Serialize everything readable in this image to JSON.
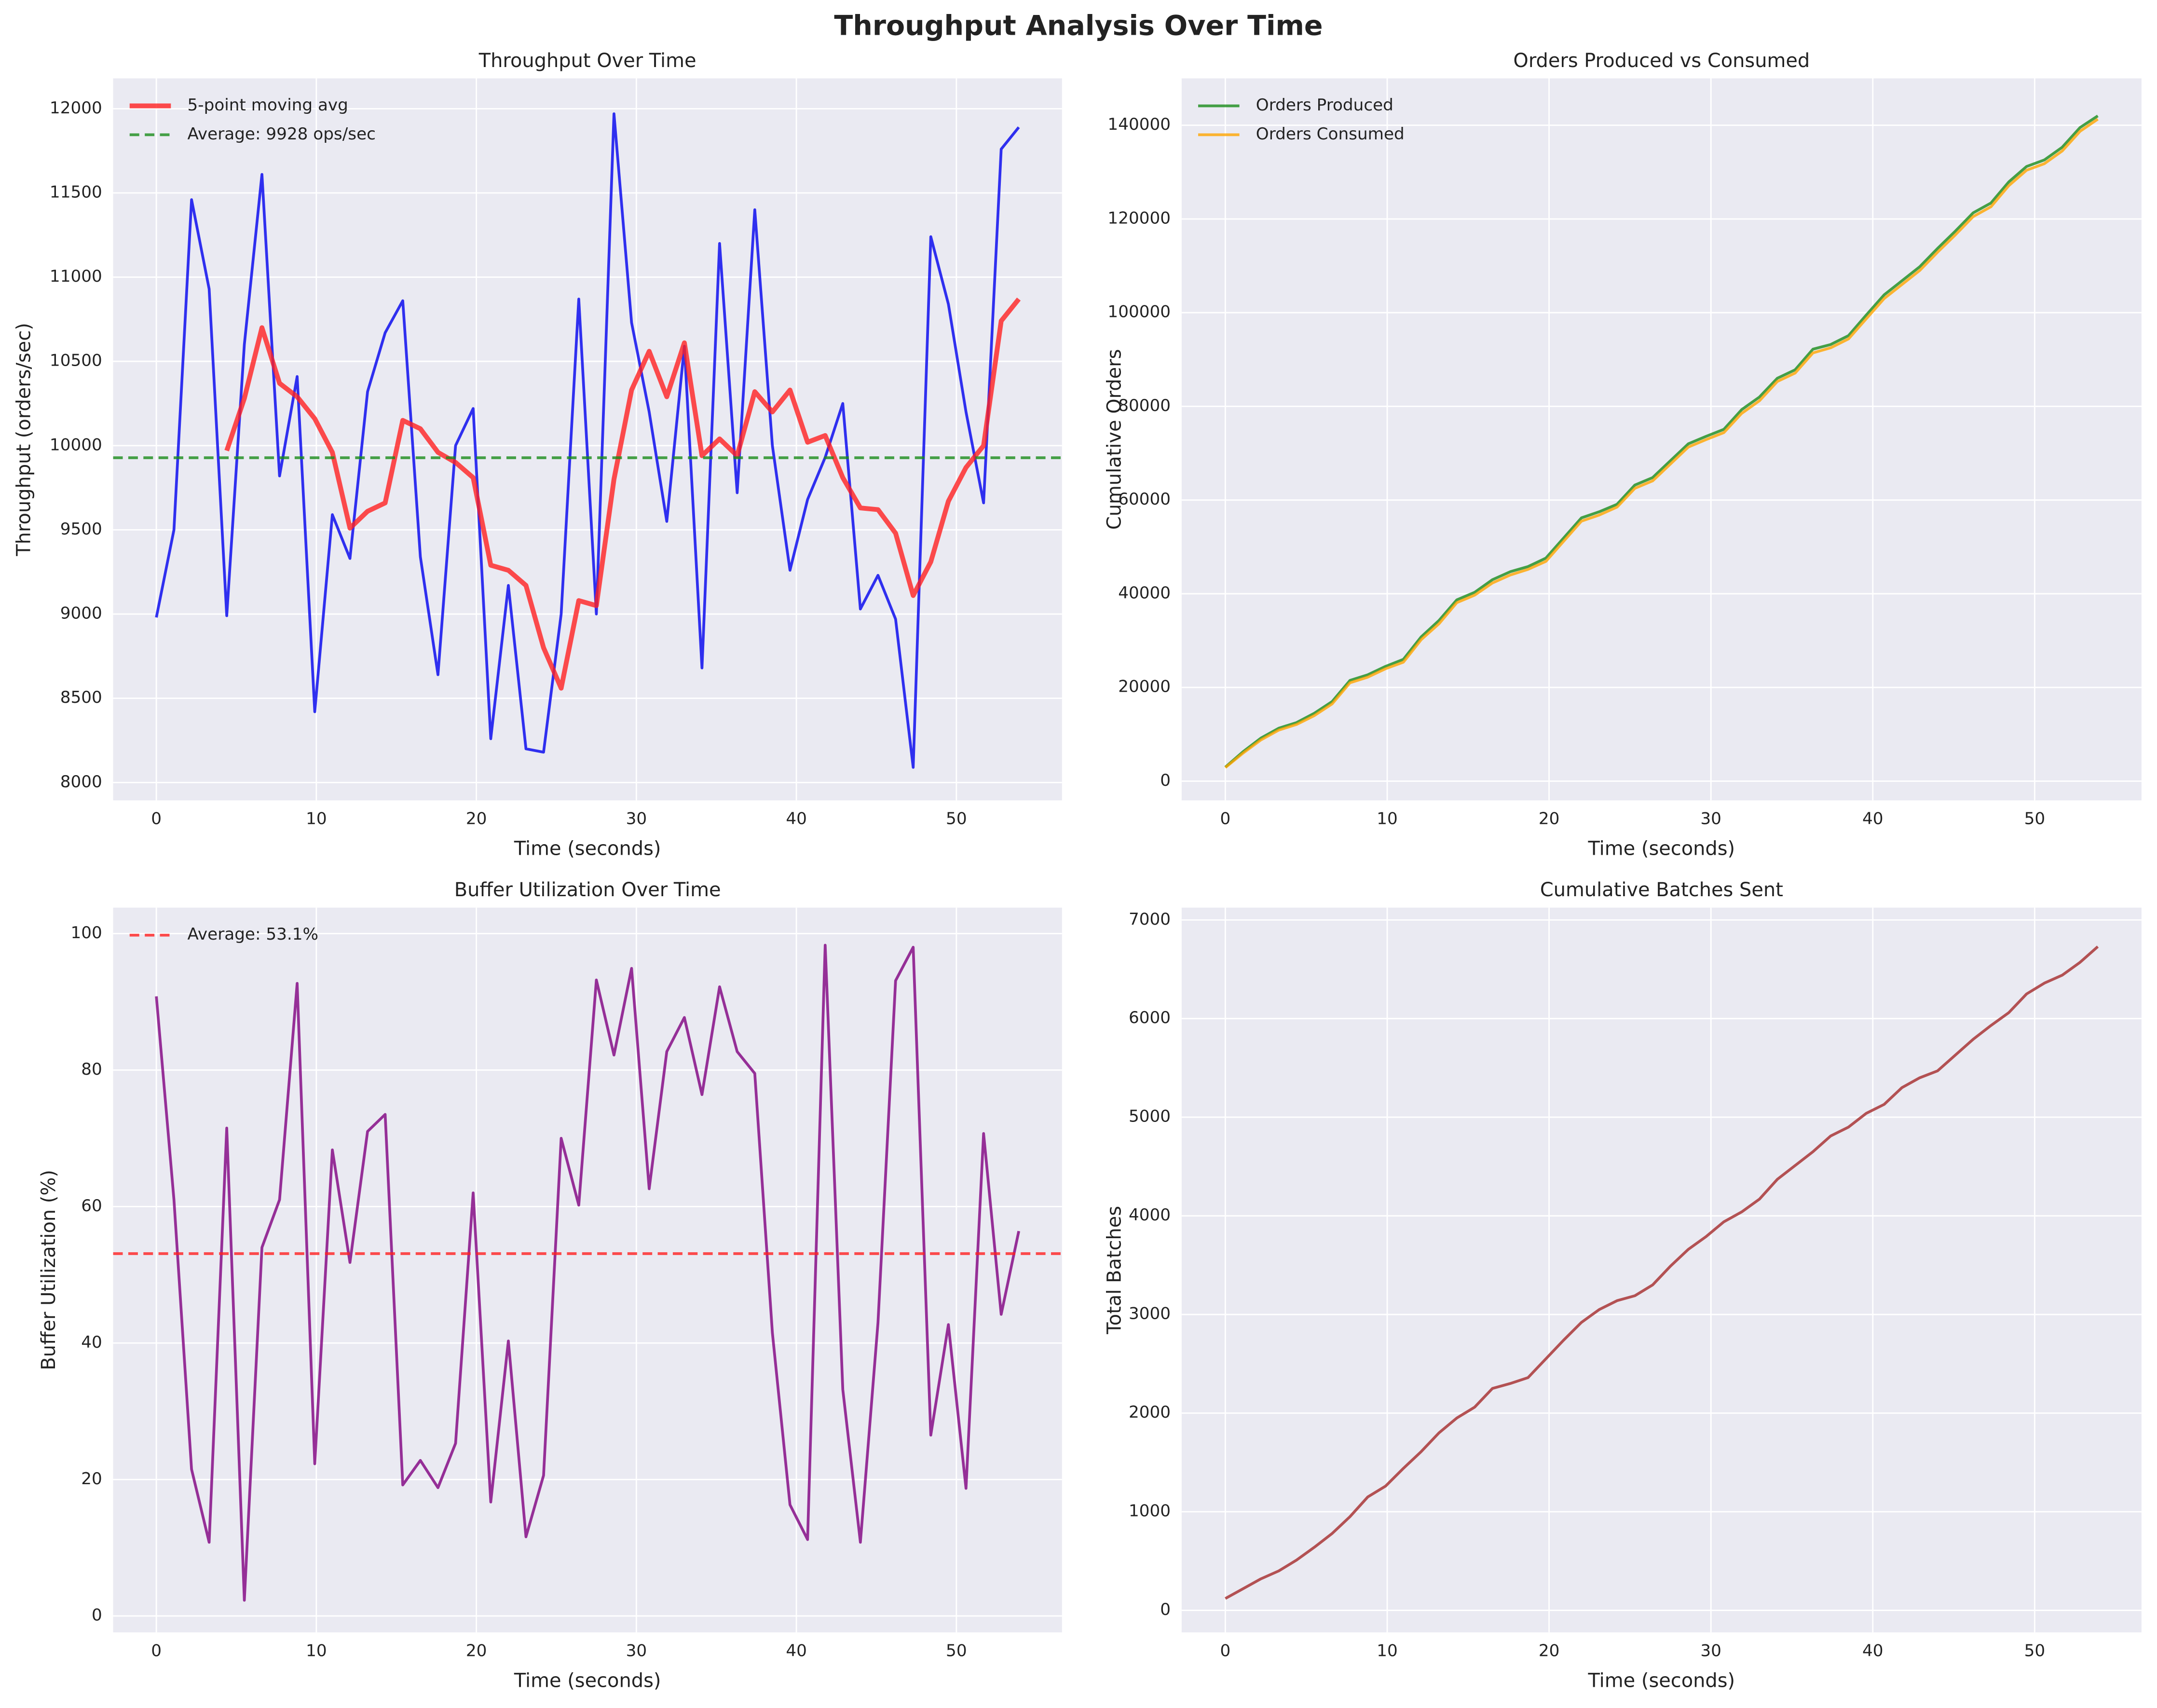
{
  "title": "Throughput Analysis Over Time",
  "chart_data": [
    {
      "type": "line",
      "title": "Throughput Over Time",
      "xlabel": "Time (seconds)",
      "ylabel": "Throughput (orders/sec)",
      "x": [
        0,
        1.1,
        2.2,
        3.3,
        4.4,
        5.5,
        6.6,
        7.7,
        8.8,
        9.9,
        11,
        12.1,
        13.2,
        14.3,
        15.4,
        16.5,
        17.6,
        18.7,
        19.8,
        20.9,
        22,
        23.1,
        24.2,
        25.3,
        26.4,
        27.5,
        28.6,
        29.7,
        30.8,
        31.9,
        33,
        34.1,
        35.2,
        36.3,
        37.4,
        38.5,
        39.6,
        40.7,
        41.8,
        42.9,
        44,
        45.1,
        46.2,
        47.3,
        48.4,
        49.5,
        50.6,
        51.7,
        52.8,
        53.9
      ],
      "series": [
        {
          "color": "#0000ee",
          "linewidth": 2,
          "values": [
            8980,
            9500,
            11460,
            10930,
            8990,
            10600,
            11610,
            9820,
            10410,
            8420,
            9590,
            9330,
            10320,
            10670,
            10860,
            9340,
            8640,
            10000,
            10220,
            8260,
            9170,
            8200,
            8180,
            9000,
            10870,
            9000,
            11970,
            10730,
            10200,
            9550,
            10590,
            8680,
            11200,
            9720,
            11400,
            10000,
            9260,
            9680,
            9930,
            10250,
            9030,
            9230,
            8970,
            8090,
            11240,
            10840,
            10200,
            9660,
            11760,
            11890
          ]
        },
        {
          "name": "5-point moving avg",
          "color": "#ff2020",
          "linewidth": 3.5,
          "values": [
            null,
            null,
            null,
            null,
            9970,
            10280,
            10700,
            10370,
            10290,
            10160,
            9960,
            9510,
            9610,
            9660,
            10150,
            10100,
            9960,
            9900,
            9810,
            9290,
            9260,
            9170,
            8800,
            8560,
            9080,
            9050,
            9800,
            10330,
            10560,
            10290,
            10610,
            9940,
            10040,
            9940,
            10320,
            10200,
            10330,
            10020,
            10060,
            9810,
            9630,
            9620,
            9480,
            9110,
            9310,
            9670,
            9870,
            10000,
            10740,
            10870
          ]
        }
      ],
      "hlines": [
        {
          "name": "Average: 9928 ops/sec",
          "value": 9928,
          "color": "#1a8c1a"
        }
      ],
      "xlim": [
        -2.7,
        56.6
      ],
      "xticks": [
        0,
        10,
        20,
        30,
        40,
        50
      ],
      "ylim": [
        7894,
        12180
      ],
      "yticks": [
        8000,
        8500,
        9000,
        9500,
        10000,
        10500,
        11000,
        11500,
        12000
      ],
      "grid": true,
      "legend": "upper left"
    },
    {
      "type": "line",
      "title": "Orders Produced vs Consumed",
      "xlabel": "Time (seconds)",
      "ylabel": "Cumulative Orders",
      "x": [
        0,
        1.1,
        2.2,
        3.3,
        4.4,
        5.5,
        6.6,
        7.7,
        8.8,
        9.9,
        11,
        12.1,
        13.2,
        14.3,
        15.4,
        16.5,
        17.6,
        18.7,
        19.8,
        20.9,
        22,
        23.1,
        24.2,
        25.3,
        26.4,
        27.5,
        28.6,
        29.7,
        30.8,
        31.9,
        33,
        34.1,
        35.2,
        36.3,
        37.4,
        38.5,
        39.6,
        40.7,
        41.8,
        42.9,
        44,
        45.1,
        46.2,
        47.3,
        48.4,
        49.5,
        50.6,
        51.7,
        52.8,
        53.9
      ],
      "series": [
        {
          "name": "Orders Produced",
          "color": "#1a8c1a",
          "linewidth": 2,
          "values": [
            3000,
            6300,
            9200,
            11300,
            12500,
            14500,
            17000,
            21500,
            22700,
            24500,
            26000,
            30800,
            34300,
            38700,
            40300,
            43000,
            44700,
            45800,
            47600,
            51900,
            56200,
            57500,
            59100,
            63200,
            64800,
            68400,
            72000,
            73600,
            75100,
            79300,
            82000,
            86000,
            87800,
            92200,
            93200,
            95100,
            99500,
            103800,
            106800,
            109800,
            113700,
            117400,
            121300,
            123400,
            127900,
            131200,
            132600,
            135300,
            139500,
            142000
          ]
        },
        {
          "name": "Orders Consumed",
          "color": "#ffa500",
          "linewidth": 2,
          "values": [
            2900,
            6000,
            8800,
            10900,
            12100,
            14000,
            16500,
            21000,
            22200,
            24000,
            25400,
            30200,
            33600,
            38100,
            39700,
            42300,
            44000,
            45200,
            46900,
            51200,
            55500,
            56800,
            58500,
            62500,
            64100,
            67700,
            71300,
            72900,
            74400,
            78500,
            81200,
            85300,
            87100,
            91400,
            92500,
            94400,
            98700,
            103000,
            106000,
            109000,
            112900,
            116600,
            120500,
            122600,
            127100,
            130400,
            131800,
            134500,
            138700,
            141300
          ]
        }
      ],
      "xlim": [
        -2.7,
        56.6
      ],
      "xticks": [
        0,
        10,
        20,
        30,
        40,
        50
      ],
      "ylim": [
        -4100,
        150000
      ],
      "yticks": [
        0,
        20000,
        40000,
        60000,
        80000,
        100000,
        120000,
        140000
      ],
      "grid": true,
      "legend": "upper left"
    },
    {
      "type": "line",
      "title": "Buffer Utilization Over Time",
      "xlabel": "Time (seconds)",
      "ylabel": "Buffer Utilization (%)",
      "x": [
        0,
        1.1,
        2.2,
        3.3,
        4.4,
        5.5,
        6.6,
        7.7,
        8.8,
        9.9,
        11,
        12.1,
        13.2,
        14.3,
        15.4,
        16.5,
        17.6,
        18.7,
        19.8,
        20.9,
        22,
        23.1,
        24.2,
        25.3,
        26.4,
        27.5,
        28.6,
        29.7,
        30.8,
        31.9,
        33,
        34.1,
        35.2,
        36.3,
        37.4,
        38.5,
        39.6,
        40.7,
        41.8,
        42.9,
        44,
        45.1,
        46.2,
        47.3,
        48.4,
        49.5,
        50.6,
        51.7,
        52.8,
        53.9
      ],
      "series": [
        {
          "color": "#800080",
          "linewidth": 2,
          "values": [
            90.8,
            61,
            21.5,
            10.8,
            71.5,
            2.3,
            54,
            61,
            92.7,
            22.3,
            68.3,
            51.8,
            71,
            73.5,
            19.2,
            22.8,
            18.8,
            25.3,
            62,
            16.7,
            40.3,
            11.6,
            20.6,
            70,
            60.2,
            93.2,
            82.2,
            94.9,
            62.6,
            82.7,
            87.7,
            76.4,
            92.2,
            82.7,
            79.5,
            41.5,
            16.3,
            11.2,
            98.3,
            33.2,
            10.8,
            43,
            93.1,
            98,
            26.5,
            42.7,
            18.7,
            70.7,
            44.2,
            56.4
          ]
        }
      ],
      "hlines": [
        {
          "name": "Average: 53.1%",
          "value": 53.1,
          "color": "#ff2020"
        }
      ],
      "xlim": [
        -2.7,
        56.6
      ],
      "xticks": [
        0,
        10,
        20,
        30,
        40,
        50
      ],
      "ylim": [
        -2.4,
        103.8
      ],
      "yticks": [
        0,
        20,
        40,
        60,
        80,
        100
      ],
      "grid": true,
      "legend": "upper left"
    },
    {
      "type": "line",
      "title": "Cumulative Batches Sent",
      "xlabel": "Time (seconds)",
      "ylabel": "Total Batches",
      "x": [
        0,
        1.1,
        2.2,
        3.3,
        4.4,
        5.5,
        6.6,
        7.7,
        8.8,
        9.9,
        11,
        12.1,
        13.2,
        14.3,
        15.4,
        16.5,
        17.6,
        18.7,
        19.8,
        20.9,
        22,
        23.1,
        24.2,
        25.3,
        26.4,
        27.5,
        28.6,
        29.7,
        30.8,
        31.9,
        33,
        34.1,
        35.2,
        36.3,
        37.4,
        38.5,
        39.6,
        40.7,
        41.8,
        42.9,
        44,
        45.1,
        46.2,
        47.3,
        48.4,
        49.5,
        50.6,
        51.7,
        52.8,
        53.9
      ],
      "series": [
        {
          "color": "#a52a2a",
          "linewidth": 2,
          "values": [
            120,
            220,
            320,
            400,
            510,
            640,
            780,
            950,
            1150,
            1260,
            1440,
            1610,
            1800,
            1950,
            2060,
            2250,
            2300,
            2360,
            2550,
            2740,
            2920,
            3050,
            3140,
            3190,
            3300,
            3490,
            3660,
            3790,
            3940,
            4040,
            4170,
            4370,
            4510,
            4650,
            4810,
            4900,
            5040,
            5130,
            5300,
            5400,
            5470,
            5630,
            5790,
            5930,
            6060,
            6250,
            6360,
            6440,
            6570,
            6730
          ]
        }
      ],
      "xlim": [
        -2.7,
        56.6
      ],
      "xticks": [
        0,
        10,
        20,
        30,
        40,
        50
      ],
      "ylim": [
        -223,
        7125
      ],
      "yticks": [
        0,
        1000,
        2000,
        3000,
        4000,
        5000,
        6000,
        7000
      ],
      "grid": true
    }
  ]
}
